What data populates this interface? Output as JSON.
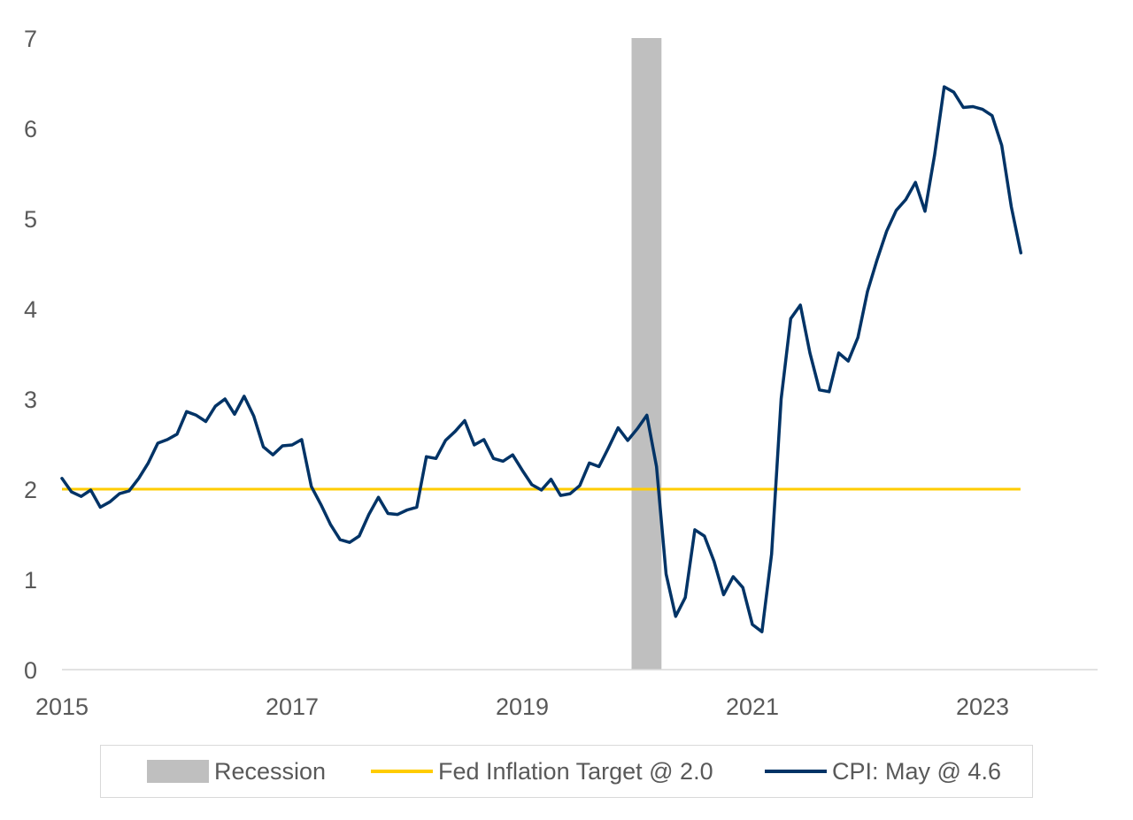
{
  "chart_data": {
    "type": "line",
    "title": "",
    "xlabel": "",
    "ylabel": "",
    "xlim": [
      2015.0,
      2024.0
    ],
    "ylim": [
      0,
      7
    ],
    "x_ticks": [
      "2015",
      "2017",
      "2019",
      "2021",
      "2023"
    ],
    "y_ticks": [
      "0",
      "1",
      "2",
      "3",
      "4",
      "5",
      "6",
      "7"
    ],
    "grid": false,
    "legend_position": "bottom",
    "recession": {
      "name": "Recession",
      "start": 2019.95,
      "end": 2020.21,
      "color": "#bfbfbf"
    },
    "target": {
      "name": "Fed Inflation Target @ 2.0",
      "value": 2.0,
      "x_start": 2015.0,
      "x_end": 2023.33,
      "color": "#ffcc00"
    },
    "series": [
      {
        "name": "CPI: May @ 4.6",
        "color": "#003366",
        "x": [
          2015.0,
          2015.083,
          2015.167,
          2015.25,
          2015.333,
          2015.417,
          2015.5,
          2015.583,
          2015.667,
          2015.75,
          2015.833,
          2015.917,
          2016.0,
          2016.083,
          2016.167,
          2016.25,
          2016.333,
          2016.417,
          2016.5,
          2016.583,
          2016.667,
          2016.75,
          2016.833,
          2016.917,
          2017.0,
          2017.083,
          2017.167,
          2017.25,
          2017.333,
          2017.417,
          2017.5,
          2017.583,
          2017.667,
          2017.75,
          2017.833,
          2017.917,
          2018.0,
          2018.083,
          2018.167,
          2018.25,
          2018.333,
          2018.417,
          2018.5,
          2018.583,
          2018.667,
          2018.75,
          2018.833,
          2018.917,
          2019.0,
          2019.083,
          2019.167,
          2019.25,
          2019.333,
          2019.417,
          2019.5,
          2019.583,
          2019.667,
          2019.75,
          2019.833,
          2019.917,
          2020.0,
          2020.083,
          2020.167,
          2020.25,
          2020.333,
          2020.417,
          2020.5,
          2020.583,
          2020.667,
          2020.75,
          2020.833,
          2020.917,
          2021.0,
          2021.083,
          2021.167,
          2021.25,
          2021.333,
          2021.417,
          2021.5,
          2021.583,
          2021.667,
          2021.75,
          2021.833,
          2021.917,
          2022.0,
          2022.083,
          2022.167,
          2022.25,
          2022.333,
          2022.417,
          2022.5,
          2022.583,
          2022.667,
          2022.75,
          2022.833,
          2022.917,
          2023.0,
          2023.083,
          2023.167,
          2023.25,
          2023.333
        ],
        "y": [
          2.12,
          1.97,
          1.92,
          1.99,
          1.8,
          1.86,
          1.95,
          1.98,
          2.12,
          2.29,
          2.51,
          2.55,
          2.61,
          2.86,
          2.82,
          2.75,
          2.92,
          3.0,
          2.83,
          3.03,
          2.81,
          2.47,
          2.38,
          2.48,
          2.49,
          2.55,
          2.03,
          1.83,
          1.61,
          1.44,
          1.41,
          1.48,
          1.72,
          1.91,
          1.73,
          1.72,
          1.77,
          1.8,
          2.36,
          2.34,
          2.54,
          2.64,
          2.76,
          2.49,
          2.55,
          2.34,
          2.31,
          2.38,
          2.21,
          2.05,
          1.99,
          2.11,
          1.93,
          1.95,
          2.04,
          2.29,
          2.25,
          2.46,
          2.68,
          2.54,
          2.67,
          2.82,
          2.25,
          1.06,
          0.59,
          0.8,
          1.55,
          1.48,
          1.2,
          0.83,
          1.03,
          0.91,
          0.5,
          0.42,
          1.28,
          3.0,
          3.89,
          4.04,
          3.51,
          3.1,
          3.08,
          3.51,
          3.42,
          3.68,
          4.19,
          4.54,
          4.86,
          5.09,
          5.21,
          5.4,
          5.08,
          5.7,
          6.46,
          6.4,
          6.23,
          6.24,
          6.21,
          6.14,
          5.81,
          5.13,
          4.62
        ]
      }
    ]
  }
}
